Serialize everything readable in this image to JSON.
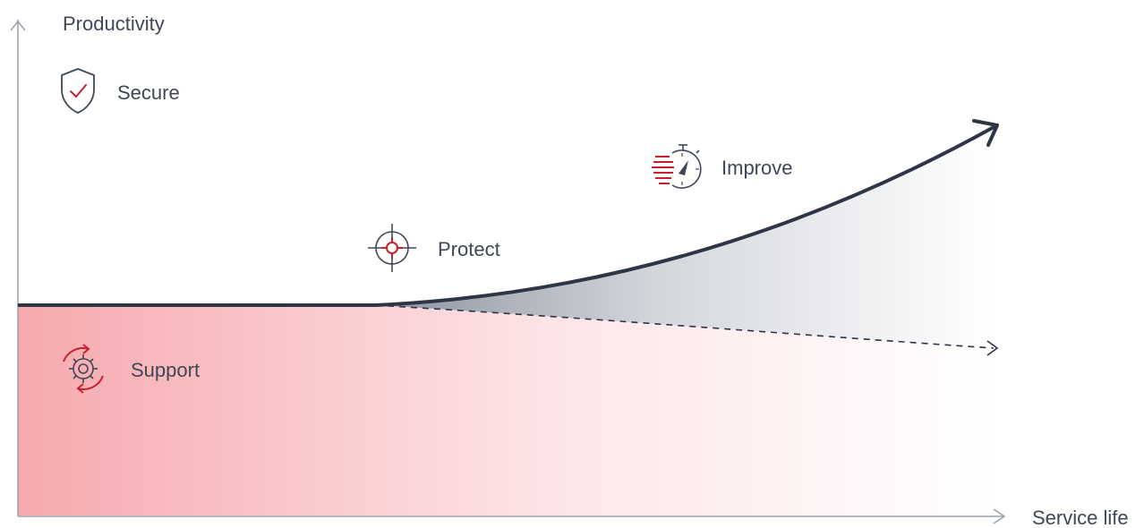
{
  "axes": {
    "y_label": "Productivity",
    "x_label": "Service life"
  },
  "items": [
    {
      "id": "secure",
      "label": "Secure",
      "icon": "shield-check-icon"
    },
    {
      "id": "protect",
      "label": "Protect",
      "icon": "crosshair-target-icon"
    },
    {
      "id": "improve",
      "label": "Improve",
      "icon": "stopwatch-speed-icon"
    },
    {
      "id": "support",
      "label": "Support",
      "icon": "gear-cycle-icon"
    }
  ],
  "colors": {
    "axis": "#9aa0a8",
    "curve": "#2e3545",
    "text": "#3f4756",
    "accent": "#c8202f",
    "support_fill": "#f6a9ae",
    "improve_fill": "#8c93a0"
  }
}
